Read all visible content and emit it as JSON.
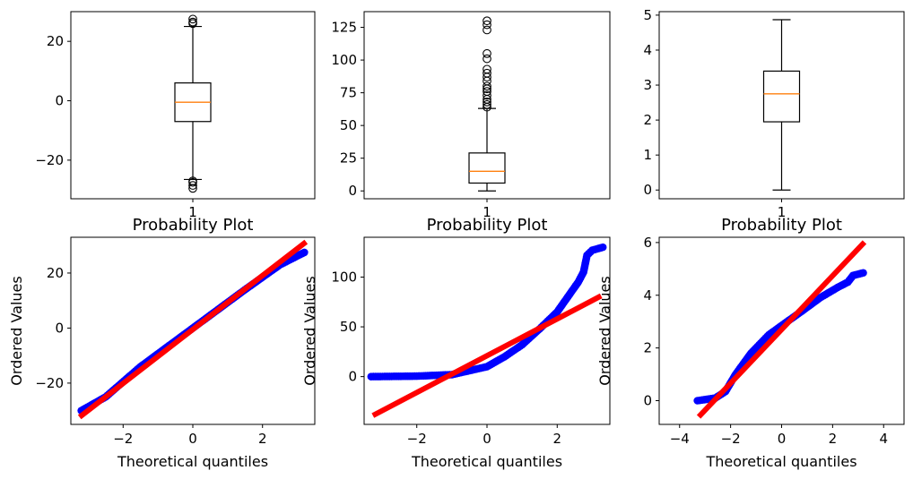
{
  "chart_data": [
    {
      "type": "boxplot",
      "xticklabels": [
        "1"
      ],
      "yticks": [
        -20,
        0,
        20
      ],
      "ylim": [
        -33,
        30
      ],
      "box": {
        "whisker_low": -26.5,
        "q1": -7,
        "median": -0.5,
        "q3": 6,
        "whisker_high": 25
      },
      "outliers": [
        27.5,
        26.5,
        26,
        -27,
        -27.5,
        -28.5,
        -29.5
      ],
      "colors": {
        "median": "#ff7f0e",
        "box": "#000000"
      }
    },
    {
      "type": "boxplot",
      "xticklabels": [
        "1"
      ],
      "yticks": [
        0,
        25,
        50,
        75,
        100,
        125
      ],
      "ylim": [
        -6,
        137
      ],
      "box": {
        "whisker_low": 0,
        "q1": 6,
        "median": 15,
        "q3": 29,
        "whisker_high": 63
      },
      "outliers": [
        130,
        127,
        123,
        105,
        101,
        93,
        90,
        87,
        84,
        80,
        78,
        76,
        73,
        70,
        68,
        66,
        64
      ],
      "colors": {
        "median": "#ff7f0e",
        "box": "#000000"
      }
    },
    {
      "type": "boxplot",
      "xticklabels": [
        "1"
      ],
      "yticks": [
        0,
        1,
        2,
        3,
        4,
        5
      ],
      "ylim": [
        -0.25,
        5.1
      ],
      "box": {
        "whisker_low": 0,
        "q1": 1.95,
        "median": 2.75,
        "q3": 3.4,
        "whisker_high": 4.87
      },
      "outliers": [],
      "colors": {
        "median": "#ff7f0e",
        "box": "#000000"
      }
    },
    {
      "type": "scatter",
      "title": "Probability Plot",
      "xlabel": "Theoretical quantiles",
      "ylabel": "Ordered Values",
      "xticks": [
        -2,
        0,
        2
      ],
      "yticks": [
        -20,
        0,
        20
      ],
      "xlim": [
        -3.5,
        3.5
      ],
      "ylim": [
        -35,
        33
      ],
      "curve": [
        [
          -3.2,
          -30
        ],
        [
          -2.5,
          -25
        ],
        [
          -1.5,
          -14
        ],
        [
          0,
          0
        ],
        [
          1.5,
          14
        ],
        [
          2.5,
          23
        ],
        [
          3.2,
          27.5
        ]
      ],
      "fit_line": {
        "slope": 9.8,
        "intercept": -0.5
      },
      "colors": {
        "points": "#0000ff",
        "line": "#ff0000"
      }
    },
    {
      "type": "scatter",
      "title": "Probability Plot",
      "xlabel": "Theoretical quantiles",
      "ylabel": "Ordered Values",
      "xticks": [
        -2,
        0,
        2
      ],
      "yticks": [
        0,
        50,
        100
      ],
      "xlim": [
        -3.5,
        3.5
      ],
      "ylim": [
        -48,
        140
      ],
      "curve": [
        [
          -3.3,
          0
        ],
        [
          -2,
          0.5
        ],
        [
          -1,
          2
        ],
        [
          0,
          10
        ],
        [
          0.5,
          20
        ],
        [
          1,
          32
        ],
        [
          1.5,
          48
        ],
        [
          2,
          65
        ],
        [
          2.3,
          80
        ],
        [
          2.6,
          95
        ],
        [
          2.75,
          105
        ],
        [
          2.85,
          122
        ],
        [
          3.0,
          127
        ],
        [
          3.3,
          130
        ]
      ],
      "fit_line": {
        "slope": 18.5,
        "intercept": 21
      },
      "colors": {
        "points": "#0000ff",
        "line": "#ff0000"
      }
    },
    {
      "type": "scatter",
      "title": "Probability Plot",
      "xlabel": "Theoretical quantiles",
      "ylabel": "Ordered Values",
      "xticks": [
        -4,
        -2,
        0,
        2,
        4
      ],
      "yticks": [
        0,
        2,
        4,
        6
      ],
      "xlim": [
        -4.8,
        4.8
      ],
      "ylim": [
        -0.9,
        6.2
      ],
      "curve": [
        [
          -3.3,
          0
        ],
        [
          -2.6,
          0.1
        ],
        [
          -2.2,
          0.35
        ],
        [
          -1.8,
          1.0
        ],
        [
          -1.2,
          1.8
        ],
        [
          -0.5,
          2.5
        ],
        [
          0,
          2.85
        ],
        [
          0.8,
          3.4
        ],
        [
          1.5,
          3.9
        ],
        [
          2.2,
          4.3
        ],
        [
          2.6,
          4.5
        ],
        [
          2.8,
          4.75
        ],
        [
          3.2,
          4.85
        ]
      ],
      "fit_line": {
        "slope": 1.02,
        "intercept": 2.7
      },
      "colors": {
        "points": "#0000ff",
        "line": "#ff0000"
      }
    }
  ]
}
